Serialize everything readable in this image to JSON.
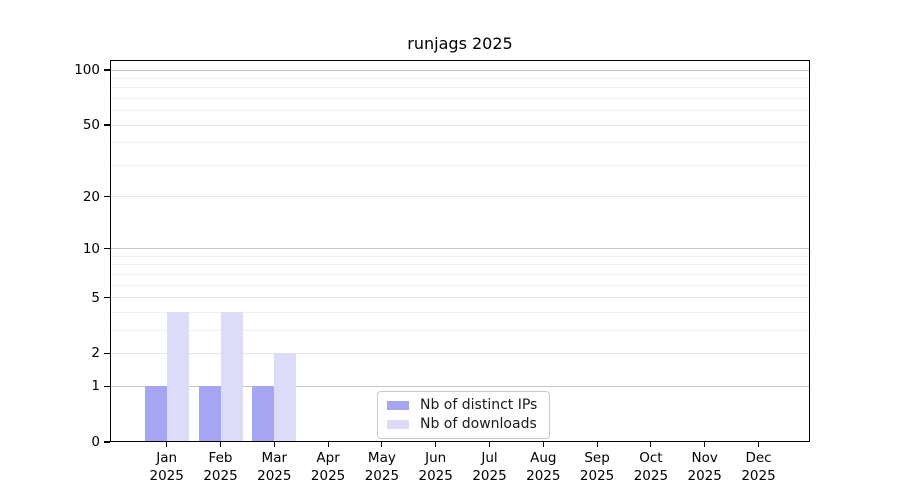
{
  "chart_data": {
    "type": "bar",
    "title": "runjags 2025",
    "categories": [
      {
        "month": "Jan",
        "year": "2025"
      },
      {
        "month": "Feb",
        "year": "2025"
      },
      {
        "month": "Mar",
        "year": "2025"
      },
      {
        "month": "Apr",
        "year": "2025"
      },
      {
        "month": "May",
        "year": "2025"
      },
      {
        "month": "Jun",
        "year": "2025"
      },
      {
        "month": "Jul",
        "year": "2025"
      },
      {
        "month": "Aug",
        "year": "2025"
      },
      {
        "month": "Sep",
        "year": "2025"
      },
      {
        "month": "Oct",
        "year": "2025"
      },
      {
        "month": "Nov",
        "year": "2025"
      },
      {
        "month": "Dec",
        "year": "2025"
      }
    ],
    "series": [
      {
        "name": "Nb of distinct IPs",
        "color": "#a5a5f1",
        "values": [
          1,
          1,
          1,
          0,
          0,
          0,
          0,
          0,
          0,
          0,
          0,
          0
        ]
      },
      {
        "name": "Nb of downloads",
        "color": "#dcdcf8",
        "values": [
          4,
          4,
          2,
          0,
          0,
          0,
          0,
          0,
          0,
          0,
          0,
          0
        ]
      }
    ],
    "y_axis": {
      "scale": "log1p",
      "tick_values": [
        0,
        1,
        2,
        5,
        10,
        20,
        50,
        100
      ],
      "tick_labels": [
        "0",
        "1",
        "2",
        "5",
        "10",
        "20",
        "50",
        "100"
      ],
      "decade_gridlines": [
        1,
        10,
        100
      ],
      "mid_gridlines": [
        2,
        5,
        20,
        50
      ],
      "minor_gridlines": [
        3,
        4,
        6,
        7,
        8,
        9,
        30,
        40,
        60,
        70,
        80,
        90
      ],
      "range_max": 111
    },
    "grid": true,
    "legend_position": "bottom-center-inside",
    "xlabel": "",
    "ylabel": ""
  },
  "colors": {
    "background": "#ffffff",
    "axis": "#000000",
    "grid_decade": "#c6c6c6",
    "grid_mid": "#e7e7e7",
    "grid_minor": "#f0f0f0",
    "legend_border": "#c9c9c9",
    "bar_distinct_ips": "#a5a5f1",
    "bar_downloads": "#dcdcf8"
  }
}
